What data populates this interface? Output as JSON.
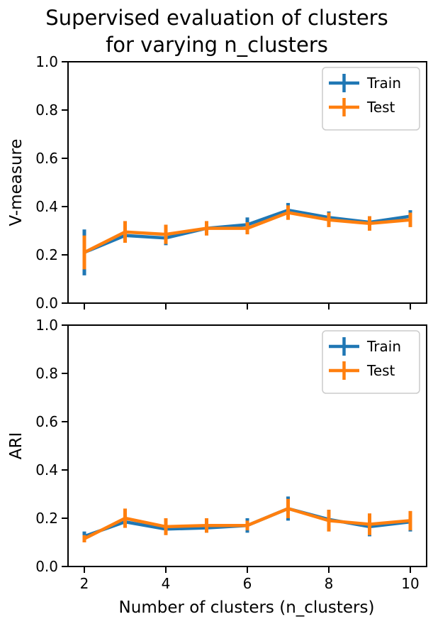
{
  "title_line1": "Supervised evaluation of clusters",
  "title_line2": "for varying n_clusters",
  "xlabel": "Number of clusters (n_clusters)",
  "chart_data": [
    {
      "type": "line",
      "ylabel": "V-measure",
      "xlim": [
        1.6,
        10.4
      ],
      "ylim": [
        0,
        1
      ],
      "xticks": [
        2,
        4,
        6,
        8,
        10
      ],
      "yticks": [
        0.0,
        0.2,
        0.4,
        0.6,
        0.8,
        1.0
      ],
      "x": [
        2,
        3,
        4,
        5,
        6,
        7,
        8,
        9,
        10
      ],
      "legend_position": "top-right",
      "series": [
        {
          "name": "Train",
          "color": "#1f77b4",
          "values": [
            0.21,
            0.28,
            0.27,
            0.31,
            0.325,
            0.385,
            0.355,
            0.335,
            0.36
          ],
          "errors": [
            0.095,
            0.03,
            0.03,
            0.02,
            0.03,
            0.03,
            0.025,
            0.025,
            0.025
          ]
        },
        {
          "name": "Test",
          "color": "#ff7f0e",
          "values": [
            0.21,
            0.295,
            0.285,
            0.31,
            0.31,
            0.375,
            0.345,
            0.33,
            0.345
          ],
          "errors": [
            0.07,
            0.045,
            0.04,
            0.03,
            0.025,
            0.03,
            0.03,
            0.03,
            0.03
          ]
        }
      ]
    },
    {
      "type": "line",
      "ylabel": "ARI",
      "xlim": [
        1.6,
        10.4
      ],
      "ylim": [
        0,
        1
      ],
      "xticks": [
        2,
        4,
        6,
        8,
        10
      ],
      "yticks": [
        0.0,
        0.2,
        0.4,
        0.6,
        0.8,
        1.0
      ],
      "x": [
        2,
        3,
        4,
        5,
        6,
        7,
        8,
        9,
        10
      ],
      "legend_position": "top-right",
      "series": [
        {
          "name": "Train",
          "color": "#1f77b4",
          "values": [
            0.125,
            0.185,
            0.155,
            0.16,
            0.17,
            0.24,
            0.195,
            0.165,
            0.185
          ],
          "errors": [
            0.02,
            0.02,
            0.02,
            0.02,
            0.03,
            0.05,
            0.04,
            0.04,
            0.04
          ]
        },
        {
          "name": "Test",
          "color": "#ff7f0e",
          "values": [
            0.115,
            0.2,
            0.165,
            0.17,
            0.17,
            0.24,
            0.19,
            0.175,
            0.19
          ],
          "errors": [
            0.015,
            0.04,
            0.035,
            0.03,
            0.02,
            0.04,
            0.045,
            0.045,
            0.04
          ]
        }
      ]
    }
  ]
}
